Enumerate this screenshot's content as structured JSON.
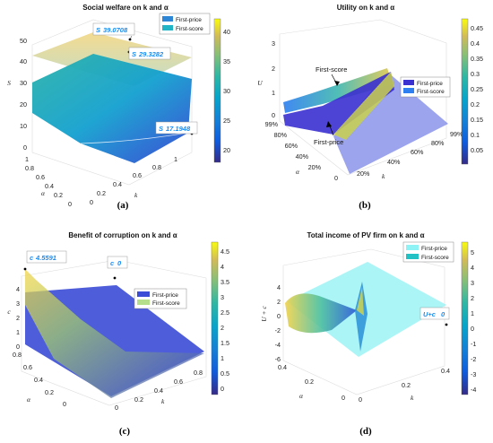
{
  "chart_data": [
    {
      "id": "a",
      "type": "surface",
      "title": "Social welfare on k and α",
      "caption": "(a)",
      "xlabel": "k",
      "ylabel": "α",
      "zlabel": "S",
      "x_ticks": [
        "0",
        "0.2",
        "0.4",
        "0.6",
        "0.8",
        "1"
      ],
      "y_ticks": [
        "0",
        "0.2",
        "0.4",
        "0.6",
        "0.8",
        "1"
      ],
      "z_ticks": [
        "0",
        "10",
        "20",
        "30",
        "40",
        "50"
      ],
      "colorbar_ticks": [
        "20",
        "25",
        "30",
        "35",
        "40"
      ],
      "legend": [
        {
          "name": "First-price",
          "color": "#2e86d6"
        },
        {
          "name": "First-score",
          "color": "#21b4c7"
        }
      ],
      "datatips": [
        {
          "label": "S",
          "value": "39.0708"
        },
        {
          "label": "S",
          "value": "29.3282"
        },
        {
          "label": "S",
          "value": "17.1948"
        }
      ],
      "annotations": []
    },
    {
      "id": "b",
      "type": "surface",
      "title": "Utility on k and α",
      "caption": "(b)",
      "xlabel": "k",
      "ylabel": "α",
      "zlabel": "U",
      "x_ticks": [
        "20%",
        "40%",
        "60%",
        "80%",
        "99%"
      ],
      "y_ticks": [
        "0",
        "20%",
        "40%",
        "60%",
        "80%",
        "99%"
      ],
      "z_ticks": [
        "0",
        "1",
        "2",
        "3"
      ],
      "colorbar_ticks": [
        "0.05",
        "0.1",
        "0.15",
        "0.2",
        "0.25",
        "0.3",
        "0.35",
        "0.4",
        "0.45"
      ],
      "legend": [
        {
          "name": "First-price",
          "color": "#3a2fd0"
        },
        {
          "name": "First-score",
          "color": "#2f7ff0"
        }
      ],
      "datatips": [],
      "annotations": [
        "First-score",
        "First-price"
      ]
    },
    {
      "id": "c",
      "type": "surface",
      "title": "Benefit of corruption on k and α",
      "caption": "(c)",
      "xlabel": "k",
      "ylabel": "α",
      "zlabel": "c",
      "x_ticks": [
        "0",
        "0.2",
        "0.4",
        "0.6",
        "0.8"
      ],
      "y_ticks": [
        "0",
        "0.2",
        "0.4",
        "0.6",
        "0.8"
      ],
      "z_ticks": [
        "0",
        "1",
        "2",
        "3",
        "4"
      ],
      "colorbar_ticks": [
        "0",
        "0.5",
        "1",
        "1.5",
        "2",
        "2.5",
        "3",
        "3.5",
        "4",
        "4.5"
      ],
      "legend": [
        {
          "name": "First-price",
          "color": "#3b4cd6"
        },
        {
          "name": "First-score",
          "color": "#b5df8a"
        }
      ],
      "datatips": [
        {
          "label": "c",
          "value": "4.5591"
        },
        {
          "label": "c",
          "value": "0"
        }
      ],
      "annotations": []
    },
    {
      "id": "d",
      "type": "surface",
      "title": "Total income of PV firm on k and α",
      "caption": "(d)",
      "xlabel": "k",
      "ylabel": "α",
      "zlabel": "U + c",
      "x_ticks": [
        "0",
        "0.2",
        "0.4"
      ],
      "y_ticks": [
        "0",
        "0.2",
        "0.4"
      ],
      "z_ticks": [
        "-6",
        "-4",
        "-2",
        "0",
        "2",
        "4"
      ],
      "colorbar_ticks": [
        "-4",
        "-3",
        "-2",
        "-1",
        "0",
        "1",
        "2",
        "3",
        "4",
        "5"
      ],
      "legend": [
        {
          "name": "First-price",
          "color": "#8ff2f4"
        },
        {
          "name": "First-score",
          "color": "#22c1c3"
        }
      ],
      "datatips": [
        {
          "label": "U+c",
          "value": "0"
        }
      ],
      "annotations": []
    }
  ]
}
